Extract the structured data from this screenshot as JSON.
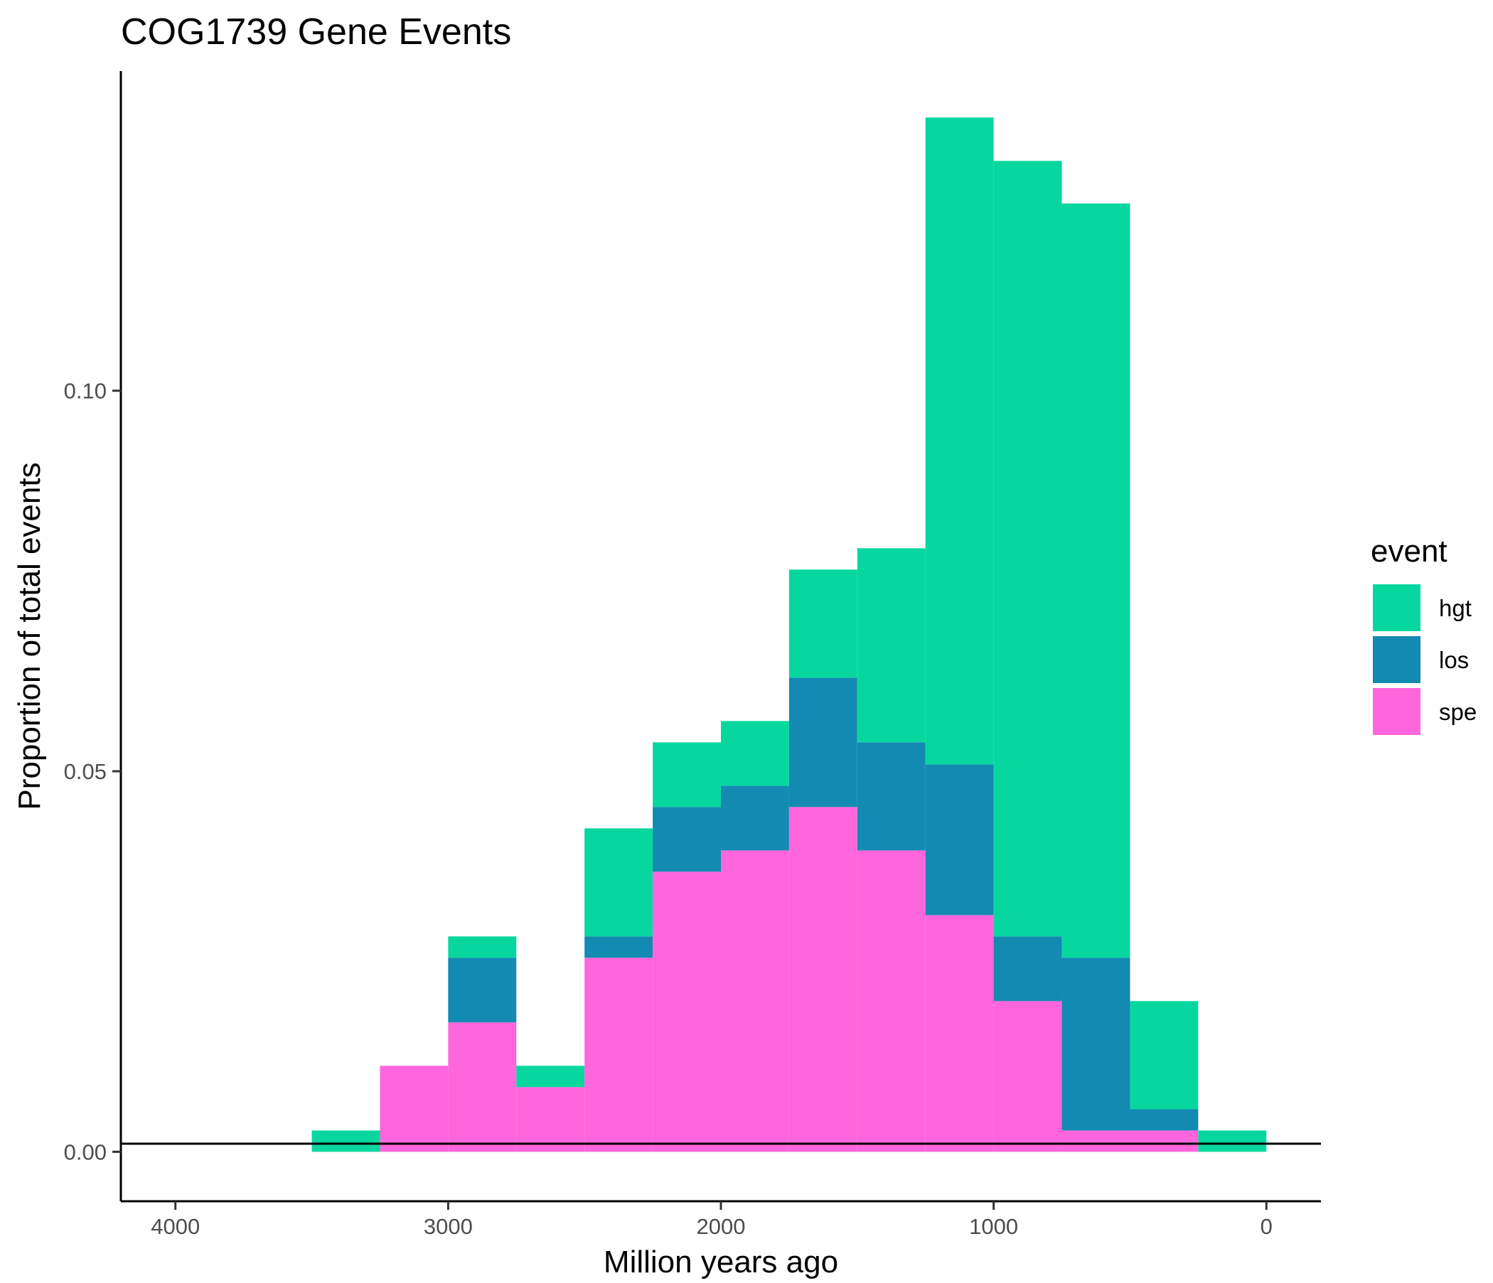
{
  "chart_data": {
    "type": "bar",
    "title": "COG1739 Gene Events",
    "xlabel": "Million years ago",
    "ylabel": "Proportion of total events",
    "x_reversed": true,
    "xlim": [
      4200,
      -200
    ],
    "ylim": [
      -0.0065,
      0.142
    ],
    "x_ticks": [
      4000,
      3000,
      2000,
      1000,
      0
    ],
    "x_tick_labels": [
      "4000",
      "3000",
      "2000",
      "1000",
      "0"
    ],
    "y_ticks": [
      0,
      0.05,
      0.1
    ],
    "y_tick_labels": [
      "0.00",
      "0.05",
      "0.10"
    ],
    "reference_line_y": 0,
    "bin_width": 250,
    "bin_centers": [
      3375,
      3125,
      2875,
      2625,
      2375,
      2125,
      1875,
      1625,
      1375,
      1125,
      875,
      625,
      375,
      125
    ],
    "series": [
      {
        "name": "spe",
        "color": "#FF66DD",
        "values": [
          0,
          0.0113,
          0.017,
          0.0085,
          0.0255,
          0.0368,
          0.0396,
          0.0453,
          0.0396,
          0.0311,
          0.0198,
          0.0028,
          0.0028,
          0
        ]
      },
      {
        "name": "los",
        "color": "#128AB2",
        "values": [
          0,
          0,
          0.0085,
          0,
          0.0028,
          0.0085,
          0.0085,
          0.017,
          0.0142,
          0.0198,
          0.0085,
          0.0227,
          0.0028,
          0
        ]
      },
      {
        "name": "hgt",
        "color": "#07D79E",
        "values": [
          0.0028,
          0,
          0.0028,
          0.0028,
          0.0142,
          0.0085,
          0.0085,
          0.0142,
          0.0255,
          0.085,
          0.1019,
          0.0991,
          0.0142,
          0.0028
        ]
      }
    ],
    "stacking_order": [
      "spe",
      "los",
      "hgt"
    ],
    "legend": {
      "title": "event",
      "position": "right",
      "entries": [
        {
          "label": "hgt",
          "color": "#07D79E"
        },
        {
          "label": "los",
          "color": "#128AB2"
        },
        {
          "label": "spe",
          "color": "#FF66DD"
        }
      ]
    },
    "grid": false
  }
}
